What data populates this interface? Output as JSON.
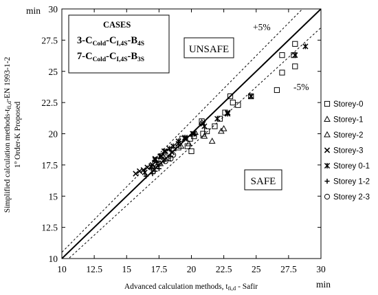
{
  "chart_data": {
    "type": "scatter",
    "xlabel": "Advanced calculation methods, t",
    "xlabel_sub": "fi,d",
    "xlabel_tail": " - Safir",
    "ylabel_main": "Simplified calculation methods-t",
    "ylabel_sub": "fi,d",
    "ylabel_tail": "-EN 1993-1-2",
    "ylabel2": "1º Order-K Proposed",
    "x_unit": "min",
    "y_unit": "min",
    "xlim": [
      10,
      30
    ],
    "ylim": [
      10,
      30
    ],
    "xticks": [
      "10",
      "12.5",
      "15",
      "17.5",
      "20",
      "22.5",
      "25",
      "27.5",
      "30"
    ],
    "yticks": [
      "10",
      "12.5",
      "15",
      "17.5",
      "20",
      "22.5",
      "25",
      "27.5",
      "30"
    ],
    "grid": false,
    "legend_position": "right",
    "annotations": {
      "plus5": "+5%",
      "minus5": "-5%",
      "unsafe": "UNSAFE",
      "safe": "SAFE"
    },
    "cases_box": {
      "title": "CASES",
      "line1": {
        "prefix": "3-C",
        "s1": "Cold",
        "mid1": "-C",
        "s2": "I,4S",
        "mid2": "-B",
        "s3": "4S"
      },
      "line2": {
        "prefix": "7-C",
        "s1": "Cold",
        "mid1": "-C",
        "s2": "I,4S",
        "mid2": "-B",
        "s3": "3S"
      }
    },
    "reference_lines": [
      {
        "kind": "identity",
        "factor": 1.0,
        "style": "solid"
      },
      {
        "kind": "plus5",
        "factor": 1.05,
        "style": "dashed"
      },
      {
        "kind": "minus5",
        "factor": 0.95,
        "style": "dashed"
      }
    ],
    "series": [
      {
        "name": "Storey-0",
        "marker": "square",
        "points": [
          [
            23.0,
            23.0
          ],
          [
            23.2,
            22.5
          ],
          [
            23.6,
            22.3
          ],
          [
            22.6,
            21.7
          ],
          [
            22.2,
            21.2
          ],
          [
            21.8,
            20.6
          ],
          [
            21.2,
            20.2
          ],
          [
            20.9,
            20.0
          ],
          [
            20.2,
            19.8
          ],
          [
            19.9,
            19.6
          ],
          [
            19.3,
            19.6
          ],
          [
            19.7,
            19.0
          ],
          [
            20.0,
            18.6
          ],
          [
            19.0,
            18.9
          ],
          [
            24.6,
            23.0
          ],
          [
            26.6,
            23.5
          ],
          [
            27.0,
            24.9
          ],
          [
            27.0,
            26.3
          ],
          [
            27.9,
            26.3
          ],
          [
            28.0,
            27.2
          ],
          [
            28.0,
            25.4
          ],
          [
            20.8,
            21.0
          ],
          [
            18.2,
            18.5
          ],
          [
            17.7,
            18.2
          ],
          [
            17.2,
            17.6
          ]
        ]
      },
      {
        "name": "Storey-1",
        "marker": "triangle",
        "points": [
          [
            21.6,
            19.4
          ],
          [
            22.5,
            20.4
          ],
          [
            20.3,
            20.1
          ],
          [
            19.2,
            19.0
          ],
          [
            18.6,
            18.8
          ],
          [
            18.2,
            18.0
          ]
        ]
      },
      {
        "name": "Storey-2",
        "marker": "triangle",
        "points": [
          [
            20.8,
            20.9
          ],
          [
            22.3,
            20.2
          ],
          [
            21.0,
            19.8
          ],
          [
            19.8,
            19.2
          ],
          [
            17.6,
            17.6
          ],
          [
            17.3,
            17.4
          ]
        ]
      },
      {
        "name": "Storey-3",
        "marker": "x",
        "points": [
          [
            15.7,
            16.8
          ],
          [
            16.0,
            17.0
          ],
          [
            16.3,
            17.1
          ],
          [
            16.6,
            17.3
          ],
          [
            17.0,
            17.5
          ],
          [
            17.2,
            18.0
          ],
          [
            17.7,
            18.2
          ],
          [
            18.0,
            18.6
          ],
          [
            18.5,
            18.5
          ],
          [
            19.0,
            19.2
          ],
          [
            19.5,
            19.6
          ],
          [
            20.1,
            20.0
          ],
          [
            20.9,
            20.8
          ],
          [
            22.8,
            21.7
          ],
          [
            24.6,
            23.0
          ]
        ]
      },
      {
        "name": "Storey 0-1",
        "marker": "asterisk",
        "points": [
          [
            16.4,
            16.9
          ],
          [
            16.9,
            17.4
          ],
          [
            17.2,
            17.9
          ],
          [
            17.6,
            18.2
          ],
          [
            17.9,
            18.6
          ],
          [
            18.3,
            18.8
          ],
          [
            18.6,
            19.0
          ],
          [
            19.0,
            19.4
          ],
          [
            19.5,
            19.7
          ],
          [
            20.2,
            20.0
          ],
          [
            21.0,
            20.6
          ],
          [
            22.0,
            21.2
          ],
          [
            22.8,
            21.6
          ],
          [
            24.6,
            23.0
          ],
          [
            28.0,
            26.3
          ],
          [
            28.8,
            27.0
          ]
        ]
      },
      {
        "name": "Storey 1-2",
        "marker": "plus",
        "points": [
          [
            16.5,
            16.6
          ],
          [
            17.0,
            16.8
          ],
          [
            17.2,
            17.0
          ],
          [
            17.5,
            17.2
          ],
          [
            17.9,
            17.8
          ],
          [
            18.4,
            18.2
          ],
          [
            16.9,
            17.2
          ],
          [
            17.3,
            17.7
          ]
        ]
      },
      {
        "name": "Storey 2-3",
        "marker": "circle",
        "points": [
          [
            17.0,
            17.3
          ],
          [
            17.5,
            17.6
          ],
          [
            18.0,
            17.8
          ],
          [
            18.4,
            18.0
          ],
          [
            17.8,
            18.1
          ],
          [
            18.6,
            18.3
          ],
          [
            17.3,
            17.9
          ]
        ]
      }
    ]
  }
}
